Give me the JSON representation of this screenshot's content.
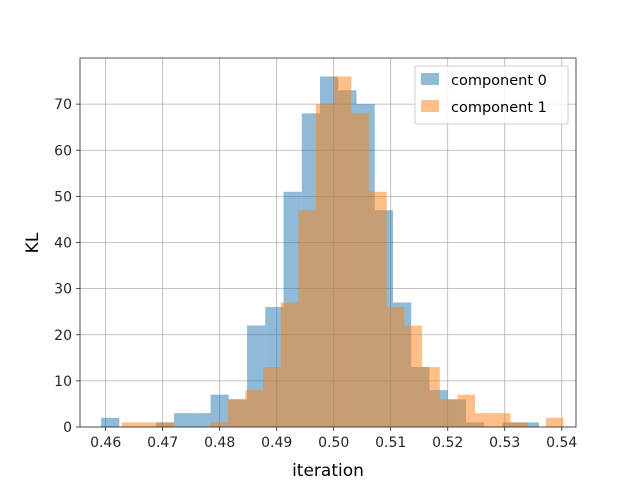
{
  "chart_data": {
    "type": "bar",
    "xlabel": "iteration",
    "ylabel": "KL",
    "xlim": [
      0.4555,
      0.5425
    ],
    "ylim": [
      0,
      80
    ],
    "xticks": [
      "0.46",
      "0.47",
      "0.48",
      "0.49",
      "0.50",
      "0.51",
      "0.52",
      "0.53",
      "0.54"
    ],
    "yticks": [
      "0",
      "10",
      "20",
      "30",
      "40",
      "50",
      "60",
      "70"
    ],
    "grid": true,
    "legend_position": "top-right",
    "series": [
      {
        "name": "component 0",
        "color": "#1f77b4",
        "alpha": 0.5,
        "bin_edges": [
          0.4592,
          0.4624,
          0.4656,
          0.4688,
          0.472,
          0.4752,
          0.4784,
          0.4816,
          0.4848,
          0.488,
          0.4912,
          0.4944,
          0.4976,
          0.5008,
          0.504,
          0.5072,
          0.5104,
          0.5136,
          0.5168,
          0.52,
          0.5232,
          0.5264,
          0.5296,
          0.5328,
          0.536
        ],
        "counts": [
          2,
          0,
          0,
          1,
          3,
          3,
          7,
          6,
          22,
          26,
          51,
          68,
          76,
          73,
          70,
          47,
          27,
          13,
          8,
          6,
          1,
          0,
          1,
          1
        ]
      },
      {
        "name": "component 1",
        "color": "#ff7f0e",
        "alpha": 0.5,
        "bin_edges": [
          0.4628,
          0.4659,
          0.469,
          0.4721,
          0.4752,
          0.4783,
          0.4814,
          0.4845,
          0.4876,
          0.4907,
          0.4938,
          0.4969,
          0.5,
          0.5031,
          0.5062,
          0.5093,
          0.5124,
          0.5155,
          0.5186,
          0.5217,
          0.5248,
          0.5279,
          0.531,
          0.5341,
          0.5372,
          0.5403
        ],
        "counts": [
          1,
          1,
          1,
          0,
          0,
          1,
          6,
          8,
          13,
          27,
          47,
          70,
          76,
          68,
          51,
          26,
          22,
          13,
          6,
          7,
          3,
          3,
          1,
          0,
          2
        ]
      }
    ]
  }
}
